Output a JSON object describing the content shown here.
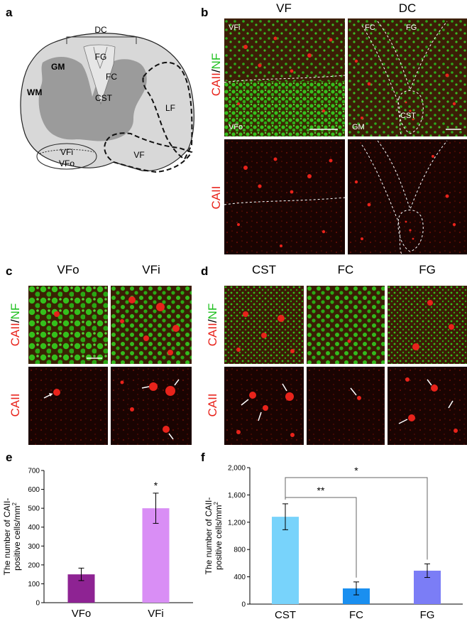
{
  "panel_letters": {
    "a": "a",
    "b": "b",
    "c": "c",
    "d": "d",
    "e": "e",
    "f": "f"
  },
  "schematic": {
    "labels": {
      "dc": "DC",
      "gm": "GM",
      "wm": "WM",
      "fg": "FG",
      "fc": "FC",
      "cst": "CST",
      "lf": "LF",
      "vf": "VF",
      "vfi": "VFi",
      "vfo": "VFo"
    }
  },
  "stain_labels": {
    "caii": "CAII",
    "slash": "/",
    "nf": "NF"
  },
  "panel_b": {
    "columns": [
      "VF",
      "DC"
    ],
    "regions_vf": {
      "top": "VFi",
      "bottom": "VFo"
    },
    "regions_dc": {
      "fc": "FC",
      "fg": "FG",
      "cst": "CST",
      "gm": "GM"
    }
  },
  "panel_c": {
    "columns": [
      "VFo",
      "VFi"
    ]
  },
  "panel_d": {
    "columns": [
      "CST",
      "FC",
      "FG"
    ]
  },
  "chart_data": [
    {
      "type": "bar",
      "panel": "e",
      "categories": [
        "VFo",
        "VFi"
      ],
      "values": [
        150,
        500
      ],
      "errors": [
        33,
        80
      ],
      "colors": [
        "#8e2393",
        "#d98ef5"
      ],
      "ylabel_line1": "The number of CAII-",
      "ylabel_line2": "positive cells/mm",
      "ylabel_sup": "2",
      "ylim": [
        0,
        700
      ],
      "yticks": [
        0,
        100,
        200,
        300,
        400,
        500,
        600,
        700
      ],
      "ytick_labels": [
        "0",
        "100",
        "200",
        "300",
        "400",
        "500",
        "600",
        "700"
      ],
      "significance": [
        {
          "category": "VFi",
          "label": "*"
        }
      ]
    },
    {
      "type": "bar",
      "panel": "f",
      "categories": [
        "CST",
        "FC",
        "FG"
      ],
      "values": [
        1280,
        230,
        490
      ],
      "errors": [
        190,
        95,
        100
      ],
      "colors": [
        "#78d3fb",
        "#1a8ff0",
        "#7b7df6"
      ],
      "ylabel_line1": "The number of CAII-",
      "ylabel_line2": "positive cells/mm",
      "ylabel_sup": "2",
      "ylim": [
        0,
        2000
      ],
      "yticks": [
        0,
        400,
        800,
        1200,
        1600,
        2000
      ],
      "ytick_labels": [
        "0",
        "400",
        "800",
        "1,200",
        "1,600",
        "2,000"
      ],
      "comparisons": [
        {
          "from": "CST",
          "to": "FC",
          "label": "**"
        },
        {
          "from": "CST",
          "to": "FG",
          "label": "*"
        }
      ]
    }
  ]
}
